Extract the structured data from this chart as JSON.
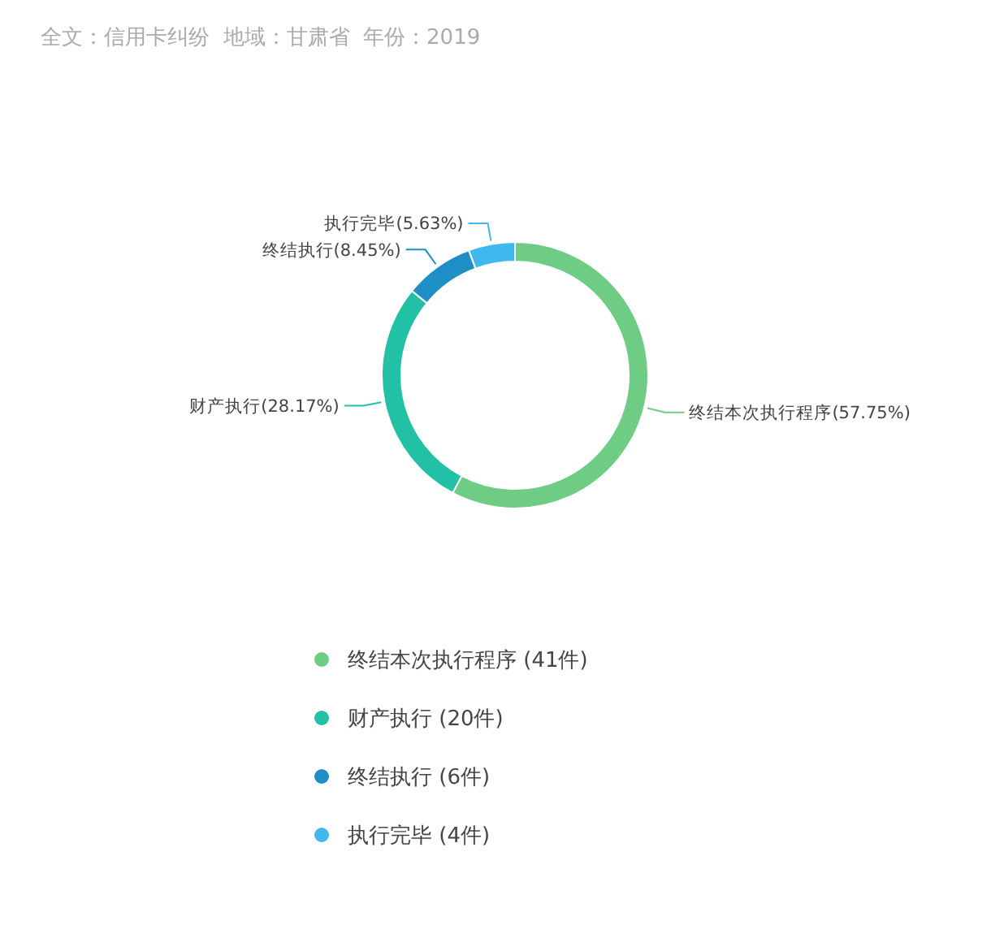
{
  "chart_data": {
    "type": "donut",
    "title": "全文：信用卡纠纷  地域：甘肃省  年份：2019",
    "categories": [
      "终结本次执行程序 (41件)",
      "财产执行 (20件)",
      "终结执行 (6件)",
      "执行完毕 (4件)"
    ],
    "values": [
      41,
      20,
      6,
      4
    ],
    "value_labels": [
      "终结本次执行程序(57.75%)",
      "财产执行(28.17%)",
      "终结执行(8.45%)",
      "执行完毕(5.63%)"
    ],
    "colors": [
      "#6fcc84",
      "#22c0a4",
      "#1e8fc6",
      "#3fb8ee"
    ],
    "legend": "bottom"
  }
}
